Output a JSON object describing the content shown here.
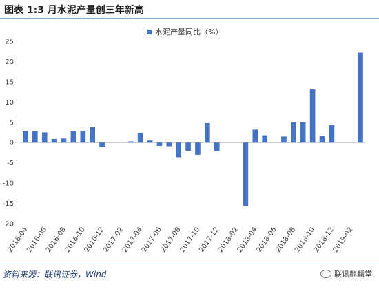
{
  "header": {
    "title": "图表 1:3 月水泥产量创三年新高"
  },
  "footer": {
    "source": "资料来源：联讯证券，Wind",
    "watermark": "联讯麒麟堂"
  },
  "colors": {
    "bar": "#4472c4",
    "rule": "#8fa6c6",
    "text": "#404040"
  },
  "chart_data": {
    "type": "bar",
    "series": [
      {
        "name": "水泥产量同比（%）",
        "values": [
          2.8,
          2.8,
          2.5,
          0.9,
          1.0,
          2.8,
          2.9,
          3.8,
          -1.1,
          null,
          null,
          0.3,
          2.4,
          0.5,
          -0.8,
          -0.9,
          -3.6,
          -2.0,
          -3.0,
          4.8,
          -2.1,
          null,
          null,
          -15.6,
          3.2,
          1.8,
          null,
          1.5,
          5.0,
          5.0,
          13.1,
          1.6,
          4.3,
          null,
          null,
          22.2
        ]
      }
    ],
    "x_tick_labels": [
      "2016-04",
      "2016-06",
      "2016-08",
      "2016-10",
      "2016-12",
      "2017-02",
      "2017-04",
      "2017-06",
      "2017-08",
      "2017-10",
      "2017-12",
      "2018-02",
      "2018-04",
      "2018-06",
      "2018-08",
      "2018-10",
      "2018-12",
      "2019-02"
    ],
    "y_ticks": [
      25,
      20,
      15,
      10,
      5,
      0,
      -5,
      -10,
      -15,
      -20
    ],
    "ylim": [
      -20,
      25
    ],
    "grid": false,
    "legend": "top-center"
  }
}
